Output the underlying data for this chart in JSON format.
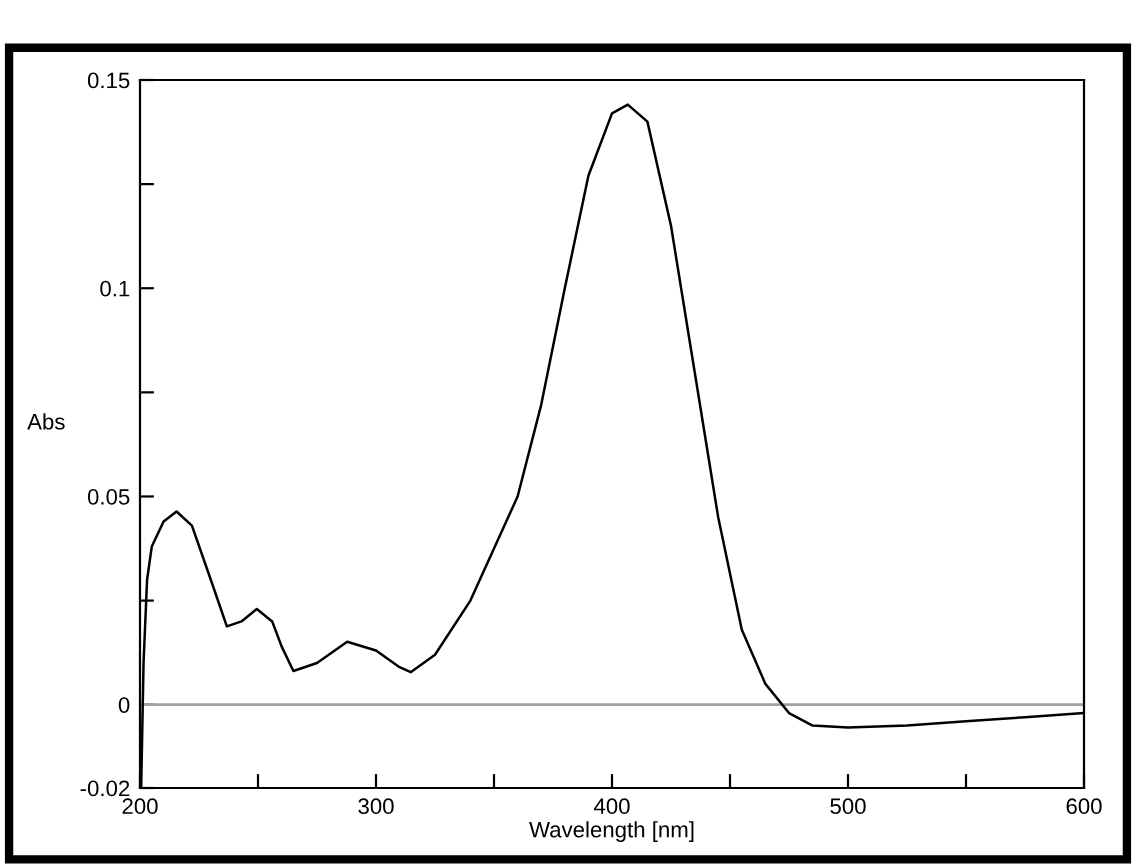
{
  "chart_data": {
    "type": "line",
    "xlabel": "Wavelength [nm]",
    "ylabel": "Abs",
    "x": [
      200.5,
      201.5,
      203,
      205,
      210,
      215.5,
      222,
      230,
      236.8,
      243,
      249.5,
      256,
      260,
      265,
      275,
      287.8,
      300,
      310,
      314.7,
      325,
      340,
      360,
      370,
      380,
      390,
      400,
      406.7,
      415,
      425,
      435,
      445,
      455,
      465,
      475,
      485,
      500,
      525,
      550,
      575,
      600
    ],
    "series": [
      {
        "color": "#000000",
        "values": [
          -0.02,
          0.01,
          0.03,
          0.038,
          0.044,
          0.0464,
          0.043,
          0.03,
          0.0188,
          0.02,
          0.023,
          0.02,
          0.014,
          0.0081,
          0.01,
          0.0151,
          0.013,
          0.009,
          0.0078,
          0.012,
          0.025,
          0.05,
          0.072,
          0.1,
          0.127,
          0.142,
          0.1441,
          0.14,
          0.115,
          0.08,
          0.045,
          0.018,
          0.005,
          -0.002,
          -0.005,
          -0.0055,
          -0.005,
          -0.004,
          -0.003,
          -0.002
        ]
      }
    ],
    "xlim": [
      200,
      600
    ],
    "xticks": [
      200,
      {
        "value": 250,
        "label": null
      },
      300,
      {
        "value": 350,
        "label": null
      },
      400,
      {
        "value": 450,
        "label": null
      },
      500,
      {
        "value": 550,
        "label": null
      },
      600
    ],
    "ylim": [
      -0.02,
      0.15
    ],
    "yticks": [
      -0.02,
      0,
      {
        "value": 0.025,
        "label": null
      },
      0.05,
      {
        "value": 0.075,
        "label": null
      },
      0.1,
      {
        "value": 0.125,
        "label": null
      },
      0.15
    ],
    "ref_lines": [
      {
        "axis": "y",
        "value": 0,
        "label": null,
        "color": "#a0a0a0"
      }
    ],
    "grid": false,
    "legend": false,
    "marker": "none",
    "line_style": "solid"
  }
}
